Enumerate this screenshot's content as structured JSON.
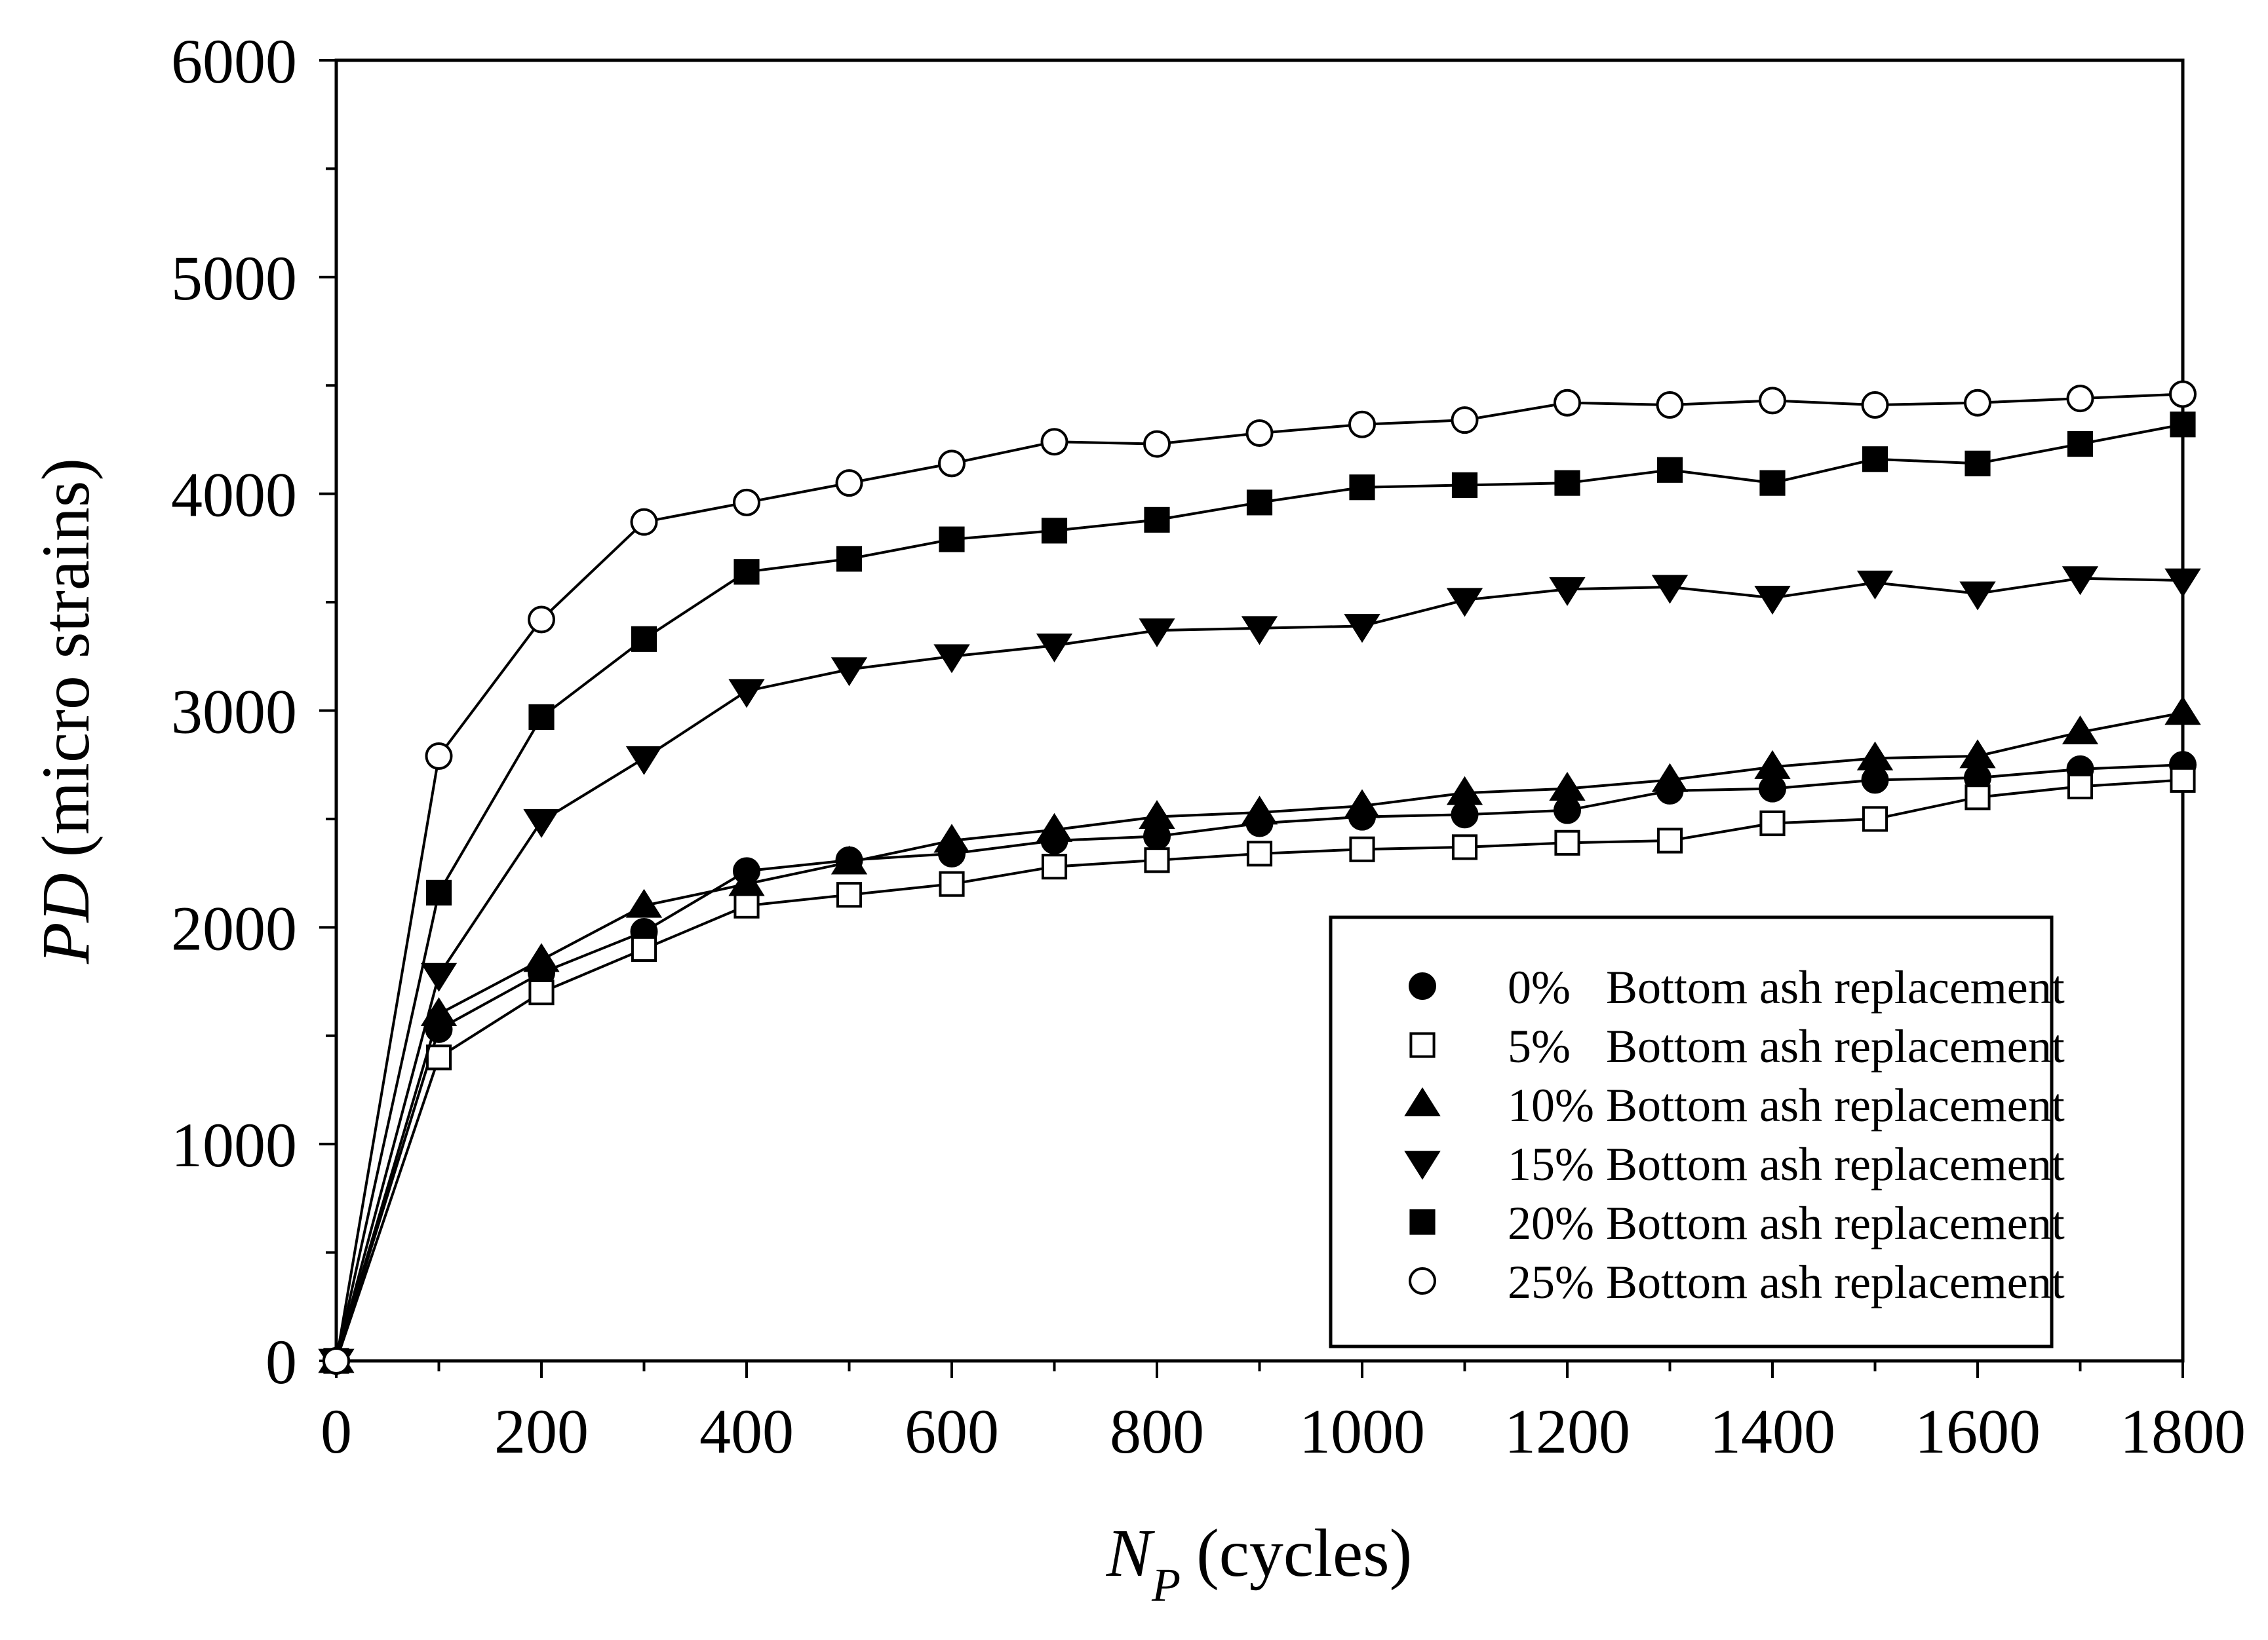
{
  "chart_data": {
    "type": "line",
    "xlabel_var": "N",
    "xlabel_sub": "P",
    "xlabel_unit": "(cycles)",
    "ylabel_var": "PD",
    "ylabel_unit": "(micro strains)",
    "xlim": [
      0,
      1800
    ],
    "ylim": [
      0,
      6000
    ],
    "xticks": [
      "0",
      "200",
      "400",
      "600",
      "800",
      "1000",
      "1200",
      "1400",
      "1600",
      "1800"
    ],
    "yticks": [
      "0",
      "1000",
      "2000",
      "3000",
      "4000",
      "5000",
      "6000"
    ],
    "grid": false,
    "legend_position": "bottom-right",
    "x": [
      0,
      100,
      200,
      300,
      400,
      500,
      600,
      700,
      800,
      900,
      1000,
      1100,
      1200,
      1300,
      1400,
      1500,
      1600,
      1700,
      1800
    ],
    "series": [
      {
        "name": "0%   Bottom ash replacement",
        "marker": "circle-filled",
        "values": [
          0,
          1530,
          1790,
          1980,
          2260,
          2310,
          2340,
          2400,
          2420,
          2480,
          2510,
          2520,
          2540,
          2630,
          2640,
          2680,
          2690,
          2730,
          2750
        ]
      },
      {
        "name": "5%   Bottom ash replacement",
        "marker": "square-open",
        "values": [
          0,
          1400,
          1700,
          1900,
          2100,
          2150,
          2200,
          2280,
          2310,
          2340,
          2360,
          2370,
          2390,
          2400,
          2480,
          2500,
          2600,
          2650,
          2680
        ]
      },
      {
        "name": "10% Bottom ash replacement",
        "marker": "triangle-up-filled",
        "values": [
          0,
          1600,
          1850,
          2100,
          2200,
          2300,
          2400,
          2450,
          2510,
          2530,
          2560,
          2620,
          2640,
          2680,
          2740,
          2780,
          2790,
          2900,
          2990
        ]
      },
      {
        "name": "15% Bottom ash replacement",
        "marker": "triangle-down-filled",
        "values": [
          0,
          1780,
          2490,
          2780,
          3090,
          3190,
          3250,
          3300,
          3370,
          3380,
          3390,
          3510,
          3560,
          3570,
          3520,
          3590,
          3540,
          3610,
          3600
        ]
      },
      {
        "name": "20% Bottom ash replacement",
        "marker": "square-filled",
        "values": [
          0,
          2160,
          2970,
          3330,
          3640,
          3700,
          3790,
          3830,
          3880,
          3960,
          4030,
          4040,
          4050,
          4110,
          4050,
          4160,
          4140,
          4230,
          4320
        ]
      },
      {
        "name": "25% Bottom ash replacement",
        "marker": "circle-open",
        "values": [
          0,
          2790,
          3420,
          3870,
          3960,
          4050,
          4140,
          4240,
          4230,
          4280,
          4320,
          4340,
          4420,
          4410,
          4430,
          4410,
          4420,
          4440,
          4460
        ]
      }
    ]
  }
}
